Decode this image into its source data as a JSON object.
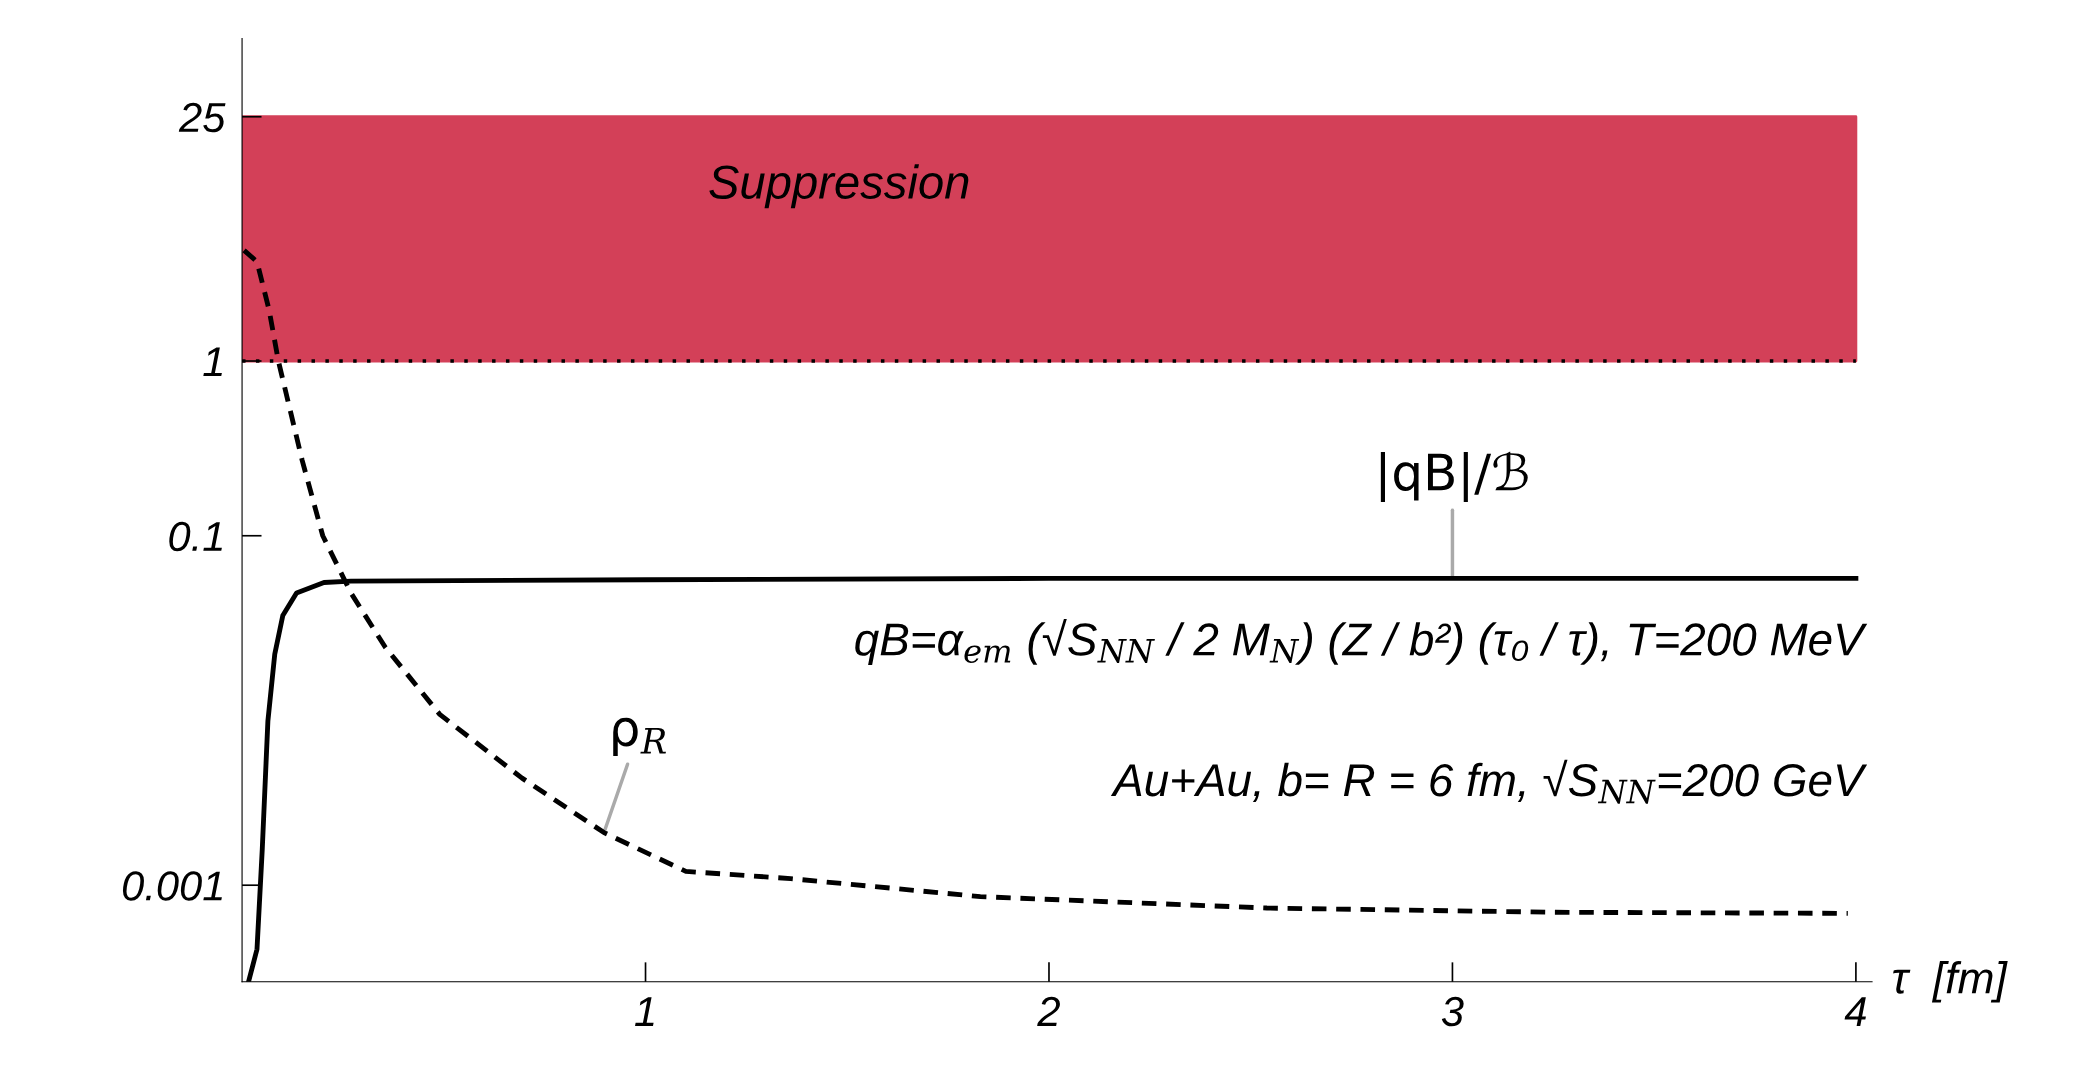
{
  "chart_data": {
    "type": "line",
    "log": "y",
    "xlabel": "τ  [fm]",
    "xlim": [
      0,
      4.04
    ],
    "xticks": [
      1,
      2,
      3,
      4
    ],
    "ylim": [
      0.00028,
      70
    ],
    "yticks": [
      0.001,
      0.1,
      1,
      25
    ],
    "grid": false,
    "legend": false,
    "series": [
      {
        "name": "|qB|/ℬ",
        "color": "#000000",
        "line_style": "solid",
        "x": [
          0.016,
          0.037,
          0.05,
          0.064,
          0.081,
          0.101,
          0.135,
          0.203,
          0.27,
          1.0,
          2.0,
          3.0,
          4.0
        ],
        "values": [
          0.00028,
          0.00043,
          0.0016,
          0.0087,
          0.021,
          0.035,
          0.047,
          0.054,
          0.055,
          0.056,
          0.057,
          0.057,
          0.057
        ]
      },
      {
        "name": "ρ$_{R}$",
        "color": "#000000",
        "line_style": "dashed",
        "x": [
          0.005,
          0.037,
          0.067,
          0.09,
          0.149,
          0.2,
          0.27,
          0.355,
          0.49,
          0.694,
          0.897,
          1.1,
          1.36,
          1.83,
          2.54,
          3.25,
          3.98
        ],
        "values": [
          4.3,
          3.7,
          1.96,
          1.0,
          0.27,
          0.1,
          0.047,
          0.023,
          0.0095,
          0.0041,
          0.002,
          0.0012,
          0.00109,
          0.00086,
          0.00074,
          0.0007,
          0.00069
        ]
      }
    ],
    "bands": [
      {
        "axis": "y",
        "from": 1,
        "to": 25,
        "label": "Suppression",
        "color": "#d34058"
      }
    ],
    "ref_lines": [
      {
        "axis": "y",
        "value": 1,
        "color": "#000000",
        "line_style": "dotted"
      }
    ],
    "annotations": [
      "qB=α$_{em}$ (√S$_{NN}$ / 2 M$_{N}$) (Z / b²) (τ₀ / τ), T=200 MeV",
      "Au+Au, b= R = 6 fm, √S$_{NN}$=200 GeV"
    ]
  }
}
